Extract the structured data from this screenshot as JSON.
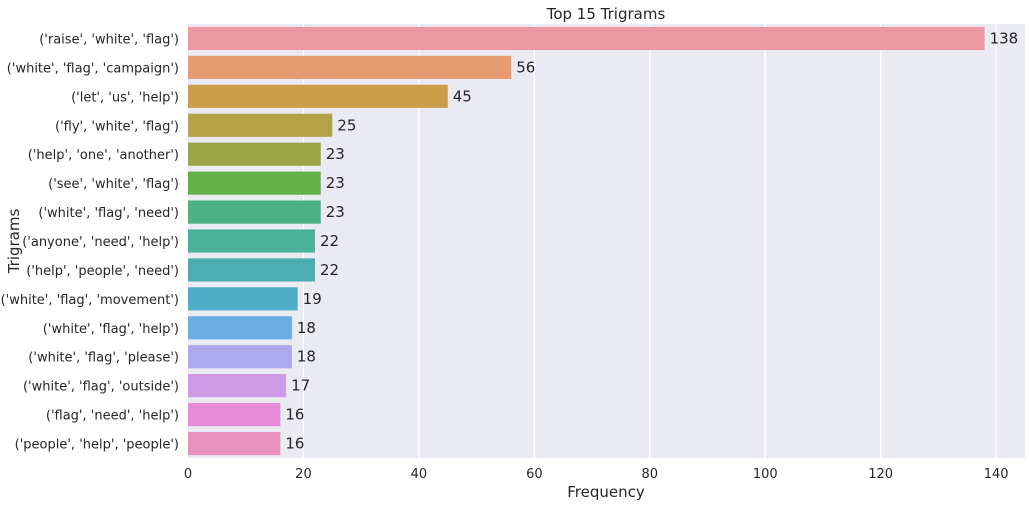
{
  "chart_data": {
    "type": "bar",
    "orientation": "horizontal",
    "title": "Top 15 Trigrams",
    "xlabel": "Frequency",
    "ylabel": "Trigrams",
    "xlim": [
      0,
      145
    ],
    "xticks": [
      0,
      20,
      40,
      60,
      80,
      100,
      120,
      140
    ],
    "grid": true,
    "categories": [
      "('raise', 'white', 'flag')",
      "('white', 'flag', 'campaign')",
      "('let', 'us', 'help')",
      "('fly', 'white', 'flag')",
      "('help', 'one', 'another')",
      "('see', 'white', 'flag')",
      "('white', 'flag', 'need')",
      "('anyone', 'need', 'help')",
      "('help', 'people', 'need')",
      "('white', 'flag', 'movement')",
      "('white', 'flag', 'help')",
      "('white', 'flag', 'please')",
      "('white', 'flag', 'outside')",
      "('flag', 'need', 'help')",
      "('people', 'help', 'people')"
    ],
    "values": [
      138,
      56,
      45,
      25,
      23,
      23,
      23,
      22,
      22,
      19,
      18,
      18,
      17,
      16,
      16
    ],
    "colors": [
      "#ED97A2",
      "#E89A73",
      "#CC9E4C",
      "#B3A248",
      "#9AA646",
      "#64B247",
      "#4CB184",
      "#4AB19B",
      "#4DADB1",
      "#4FADC8",
      "#6BAEE2",
      "#ADA9EC",
      "#CE99E5",
      "#E68CD9",
      "#E991BF"
    ],
    "background": "#EAEAF2",
    "gridColor": "#FFFFFF"
  }
}
